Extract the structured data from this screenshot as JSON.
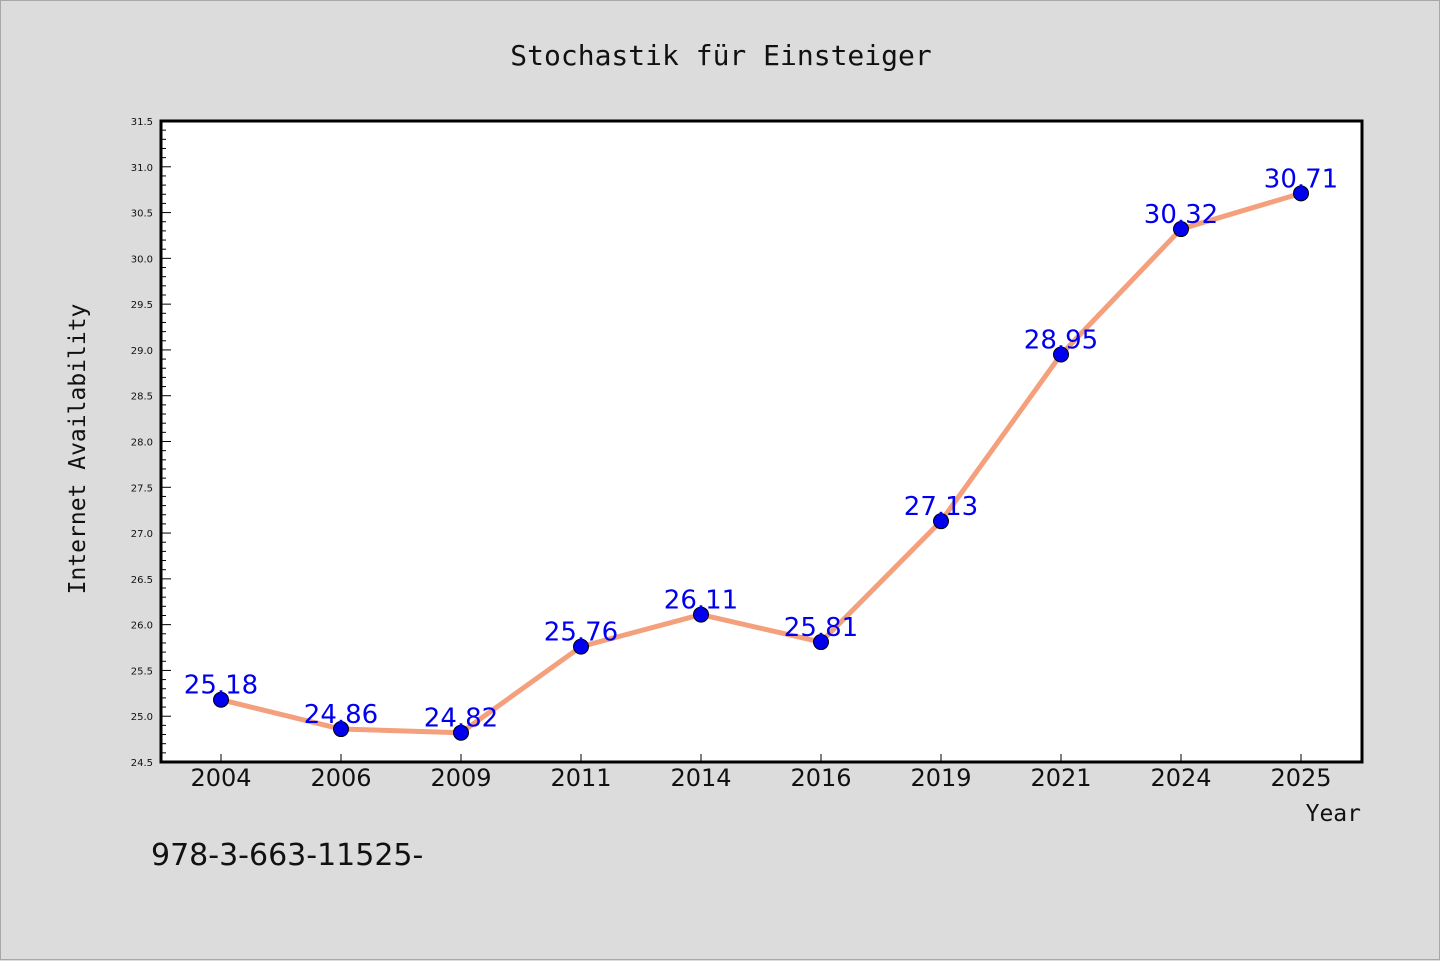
{
  "chart_data": {
    "type": "line",
    "title": "Stochastik für Einsteiger",
    "xlabel": "Year",
    "ylabel": "Internet Availability",
    "categories": [
      "2004",
      "2006",
      "2009",
      "2011",
      "2014",
      "2016",
      "2019",
      "2021",
      "2024",
      "2025"
    ],
    "series": [
      {
        "values": [
          25.18,
          24.86,
          24.82,
          25.76,
          26.11,
          25.81,
          27.13,
          28.95,
          30.32,
          30.71
        ],
        "labels": [
          "25.18",
          "24.86",
          "24.82",
          "25.76",
          "26.11",
          "25.81",
          "27.13",
          "28.95",
          "30.32",
          "30.71"
        ],
        "line_color": "#f4a07c",
        "marker_color": "#0000ee",
        "label_color": "#0000ee"
      }
    ],
    "ylim": [
      24.5,
      31.5
    ],
    "yticks": [
      "24.5",
      "25.0",
      "25.5",
      "26.0",
      "26.5",
      "27.0",
      "27.5",
      "28.0",
      "28.5",
      "29.0",
      "29.5",
      "30.0",
      "30.5",
      "31.0",
      "31.5"
    ],
    "grid": false,
    "legend": "none"
  },
  "footer": {
    "text": "978-3-663-11525-"
  },
  "colors": {
    "background": "#dcdcdc",
    "plot_background": "#ffffff",
    "frame": "#000000"
  }
}
